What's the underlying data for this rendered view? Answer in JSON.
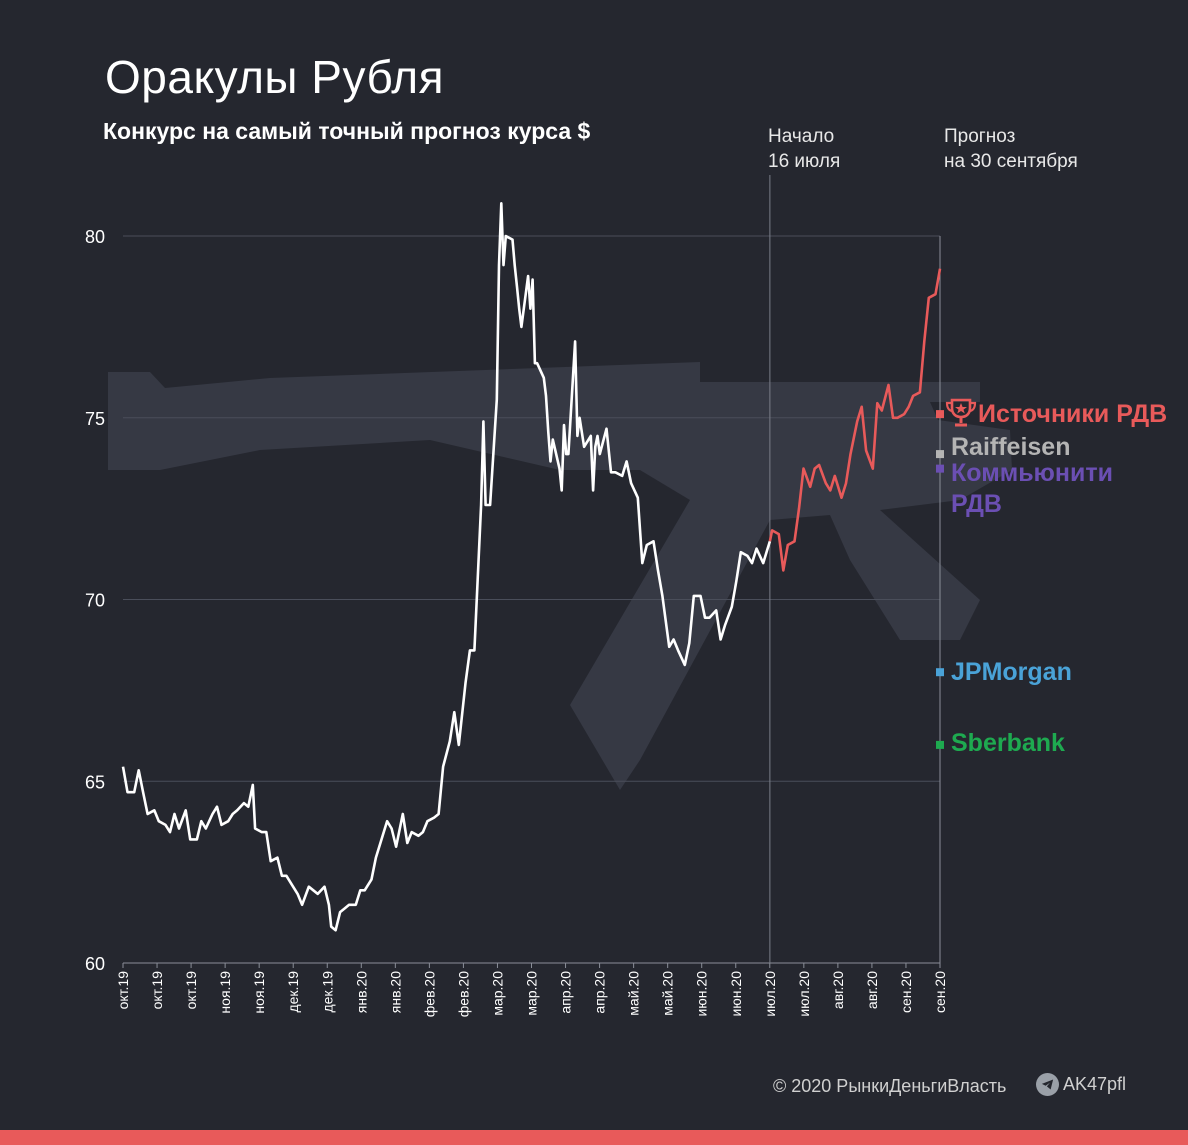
{
  "header": {
    "title": "Оракулы Рубля",
    "subtitle": "Конкурс на самый точный прогноз курса $"
  },
  "annotations": {
    "start": [
      "Начало",
      "16 июля"
    ],
    "forecast": [
      "Прогноз",
      "на 30 сентября"
    ]
  },
  "footer": {
    "copyright": "© 2020  РынкиДеньгиВласть",
    "telegram": "AK47pfl"
  },
  "colors": {
    "background": "#25272f",
    "historical": "#ffffff",
    "actual_after_start": "#e85a5a",
    "grid": "#4a4e5a",
    "bottom_bar": "#e85a5a"
  },
  "chart_data": {
    "type": "line",
    "title": "Оракулы Рубля",
    "subtitle": "Конкурс на самый точный прогноз курса $",
    "ylim": [
      60,
      81
    ],
    "yticks": [
      60,
      65,
      70,
      75,
      80
    ],
    "xlim": [
      "2019-10-01",
      "2020-09-30"
    ],
    "x_tick_labels": [
      "окт.19",
      "окт.19",
      "окт.19",
      "ноя.19",
      "ноя.19",
      "дек.19",
      "дек.19",
      "янв.20",
      "янв.20",
      "фев.20",
      "фев.20",
      "мар.20",
      "мар.20",
      "апр.20",
      "апр.20",
      "май.20",
      "май.20",
      "июн.20",
      "июн.20",
      "июл.20",
      "июл.20",
      "авг.20",
      "авг.20",
      "сен.20",
      "сен.20"
    ],
    "grid": "horizontal",
    "start_marker": "2020-07-16",
    "series": [
      {
        "role": "historical",
        "color": "#ffffff",
        "points": [
          [
            "2019-10-01",
            65.4
          ],
          [
            "2019-10-03",
            64.7
          ],
          [
            "2019-10-06",
            64.7
          ],
          [
            "2019-10-08",
            65.3
          ],
          [
            "2019-10-10",
            64.7
          ],
          [
            "2019-10-12",
            64.1
          ],
          [
            "2019-10-15",
            64.2
          ],
          [
            "2019-10-17",
            63.9
          ],
          [
            "2019-10-20",
            63.8
          ],
          [
            "2019-10-22",
            63.6
          ],
          [
            "2019-10-24",
            64.1
          ],
          [
            "2019-10-26",
            63.7
          ],
          [
            "2019-10-29",
            64.2
          ],
          [
            "2019-10-31",
            63.4
          ],
          [
            "2019-11-03",
            63.4
          ],
          [
            "2019-11-05",
            63.9
          ],
          [
            "2019-11-07",
            63.7
          ],
          [
            "2019-11-10",
            64.1
          ],
          [
            "2019-11-12",
            64.3
          ],
          [
            "2019-11-14",
            63.8
          ],
          [
            "2019-11-17",
            63.9
          ],
          [
            "2019-11-19",
            64.1
          ],
          [
            "2019-11-21",
            64.2
          ],
          [
            "2019-11-24",
            64.4
          ],
          [
            "2019-11-26",
            64.3
          ],
          [
            "2019-11-28",
            64.9
          ],
          [
            "2019-11-29",
            63.7
          ],
          [
            "2019-12-02",
            63.6
          ],
          [
            "2019-12-04",
            63.6
          ],
          [
            "2019-12-06",
            62.8
          ],
          [
            "2019-12-09",
            62.9
          ],
          [
            "2019-12-11",
            62.4
          ],
          [
            "2019-12-13",
            62.4
          ],
          [
            "2019-12-16",
            62.1
          ],
          [
            "2019-12-18",
            61.9
          ],
          [
            "2019-12-20",
            61.6
          ],
          [
            "2019-12-23",
            62.1
          ],
          [
            "2019-12-25",
            62.0
          ],
          [
            "2019-12-27",
            61.9
          ],
          [
            "2019-12-30",
            62.1
          ],
          [
            "2020-01-01",
            61.6
          ],
          [
            "2020-01-02",
            61.0
          ],
          [
            "2020-01-04",
            60.9
          ],
          [
            "2020-01-06",
            61.4
          ],
          [
            "2020-01-08",
            61.5
          ],
          [
            "2020-01-10",
            61.6
          ],
          [
            "2020-01-13",
            61.6
          ],
          [
            "2020-01-15",
            62.0
          ],
          [
            "2020-01-17",
            62.0
          ],
          [
            "2020-01-20",
            62.3
          ],
          [
            "2020-01-22",
            62.9
          ],
          [
            "2020-01-24",
            63.3
          ],
          [
            "2020-01-27",
            63.9
          ],
          [
            "2020-01-29",
            63.7
          ],
          [
            "2020-01-31",
            63.2
          ],
          [
            "2020-02-03",
            64.1
          ],
          [
            "2020-02-05",
            63.3
          ],
          [
            "2020-02-07",
            63.6
          ],
          [
            "2020-02-10",
            63.5
          ],
          [
            "2020-02-12",
            63.6
          ],
          [
            "2020-02-14",
            63.9
          ],
          [
            "2020-02-17",
            64.0
          ],
          [
            "2020-02-19",
            64.1
          ],
          [
            "2020-02-21",
            65.4
          ],
          [
            "2020-02-24",
            66.1
          ],
          [
            "2020-02-26",
            66.9
          ],
          [
            "2020-02-28",
            66.0
          ],
          [
            "2020-03-02",
            67.7
          ],
          [
            "2020-03-04",
            68.6
          ],
          [
            "2020-03-06",
            68.6
          ],
          [
            "2020-03-09",
            72.6
          ],
          [
            "2020-03-10",
            74.9
          ],
          [
            "2020-03-11",
            72.6
          ],
          [
            "2020-03-13",
            72.6
          ],
          [
            "2020-03-16",
            75.5
          ],
          [
            "2020-03-17",
            79.2
          ],
          [
            "2020-03-18",
            80.9
          ],
          [
            "2020-03-19",
            79.2
          ],
          [
            "2020-03-20",
            80.0
          ],
          [
            "2020-03-23",
            79.9
          ],
          [
            "2020-03-24",
            79.2
          ],
          [
            "2020-03-25",
            78.6
          ],
          [
            "2020-03-26",
            78.0
          ],
          [
            "2020-03-27",
            77.5
          ],
          [
            "2020-03-30",
            78.9
          ],
          [
            "2020-03-31",
            78.0
          ],
          [
            "2020-04-01",
            78.8
          ],
          [
            "2020-04-02",
            76.5
          ],
          [
            "2020-04-03",
            76.5
          ],
          [
            "2020-04-06",
            76.1
          ],
          [
            "2020-04-07",
            75.6
          ],
          [
            "2020-04-08",
            74.6
          ],
          [
            "2020-04-09",
            73.8
          ],
          [
            "2020-04-10",
            74.4
          ],
          [
            "2020-04-13",
            73.6
          ],
          [
            "2020-04-14",
            73.0
          ],
          [
            "2020-04-15",
            74.8
          ],
          [
            "2020-04-16",
            74.0
          ],
          [
            "2020-04-17",
            74.0
          ],
          [
            "2020-04-20",
            77.1
          ],
          [
            "2020-04-21",
            74.5
          ],
          [
            "2020-04-22",
            75.0
          ],
          [
            "2020-04-24",
            74.2
          ],
          [
            "2020-04-27",
            74.5
          ],
          [
            "2020-04-28",
            73.0
          ],
          [
            "2020-04-29",
            74.2
          ],
          [
            "2020-04-30",
            74.5
          ],
          [
            "2020-05-01",
            74.0
          ],
          [
            "2020-05-04",
            74.7
          ],
          [
            "2020-05-06",
            73.5
          ],
          [
            "2020-05-08",
            73.5
          ],
          [
            "2020-05-11",
            73.4
          ],
          [
            "2020-05-13",
            73.8
          ],
          [
            "2020-05-15",
            73.2
          ],
          [
            "2020-05-18",
            72.8
          ],
          [
            "2020-05-20",
            71.0
          ],
          [
            "2020-05-22",
            71.5
          ],
          [
            "2020-05-25",
            71.6
          ],
          [
            "2020-05-27",
            70.8
          ],
          [
            "2020-05-29",
            70.1
          ],
          [
            "2020-06-01",
            68.7
          ],
          [
            "2020-06-03",
            68.9
          ],
          [
            "2020-06-05",
            68.6
          ],
          [
            "2020-06-08",
            68.2
          ],
          [
            "2020-06-10",
            68.8
          ],
          [
            "2020-06-12",
            70.1
          ],
          [
            "2020-06-15",
            70.1
          ],
          [
            "2020-06-17",
            69.5
          ],
          [
            "2020-06-19",
            69.5
          ],
          [
            "2020-06-22",
            69.7
          ],
          [
            "2020-06-24",
            68.9
          ],
          [
            "2020-06-26",
            69.3
          ],
          [
            "2020-06-29",
            69.8
          ],
          [
            "2020-07-01",
            70.5
          ],
          [
            "2020-07-03",
            71.3
          ],
          [
            "2020-07-06",
            71.2
          ],
          [
            "2020-07-08",
            71.0
          ],
          [
            "2020-07-10",
            71.4
          ],
          [
            "2020-07-13",
            71.0
          ],
          [
            "2020-07-15",
            71.4
          ],
          [
            "2020-07-16",
            71.6
          ]
        ]
      },
      {
        "role": "actual_after_start",
        "color": "#e85a5a",
        "points": [
          [
            "2020-07-16",
            71.6
          ],
          [
            "2020-07-17",
            71.9
          ],
          [
            "2020-07-20",
            71.8
          ],
          [
            "2020-07-22",
            70.8
          ],
          [
            "2020-07-24",
            71.5
          ],
          [
            "2020-07-27",
            71.6
          ],
          [
            "2020-07-29",
            72.5
          ],
          [
            "2020-07-31",
            73.6
          ],
          [
            "2020-08-03",
            73.1
          ],
          [
            "2020-08-05",
            73.6
          ],
          [
            "2020-08-07",
            73.7
          ],
          [
            "2020-08-10",
            73.2
          ],
          [
            "2020-08-12",
            73.0
          ],
          [
            "2020-08-14",
            73.4
          ],
          [
            "2020-08-17",
            72.8
          ],
          [
            "2020-08-19",
            73.2
          ],
          [
            "2020-08-21",
            74.0
          ],
          [
            "2020-08-24",
            74.9
          ],
          [
            "2020-08-26",
            75.3
          ],
          [
            "2020-08-28",
            74.1
          ],
          [
            "2020-08-31",
            73.6
          ],
          [
            "2020-09-02",
            75.4
          ],
          [
            "2020-09-04",
            75.2
          ],
          [
            "2020-09-07",
            75.9
          ],
          [
            "2020-09-09",
            75.0
          ],
          [
            "2020-09-11",
            75.0
          ],
          [
            "2020-09-14",
            75.1
          ],
          [
            "2020-09-16",
            75.3
          ],
          [
            "2020-09-18",
            75.6
          ],
          [
            "2020-09-21",
            75.7
          ],
          [
            "2020-09-23",
            77.1
          ],
          [
            "2020-09-25",
            78.3
          ],
          [
            "2020-09-28",
            78.4
          ],
          [
            "2020-09-30",
            79.1
          ]
        ]
      }
    ],
    "forecasts": [
      {
        "label": "Источники РДВ",
        "value": 75.1,
        "color": "#e85a5a",
        "icon": "trophy-icon"
      },
      {
        "label": "Raiffeisen",
        "value": 74.0,
        "color": "#b4b4b4"
      },
      {
        "label": "Коммьюнити РДВ",
        "value": 73.6,
        "color": "#6b4fb3"
      },
      {
        "label": "JPMorgan",
        "value": 68.0,
        "color": "#4aa3d8"
      },
      {
        "label": "Sberbank",
        "value": 66.0,
        "color": "#1eaa50"
      }
    ]
  }
}
